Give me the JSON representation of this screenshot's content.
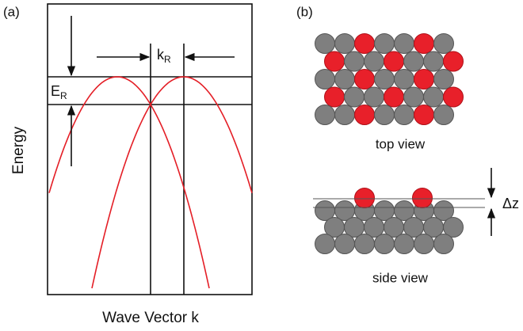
{
  "panel_a": {
    "label": "(a)",
    "y_label": "Energy",
    "x_label": "Wave Vector k",
    "k_label": {
      "main": "k",
      "sub": "R"
    },
    "e_label": {
      "main": "E",
      "sub": "R"
    }
  },
  "panel_b": {
    "label": "(b)",
    "top_caption": "top view",
    "side_caption": "side view",
    "dz_label": "Δz"
  }
}
